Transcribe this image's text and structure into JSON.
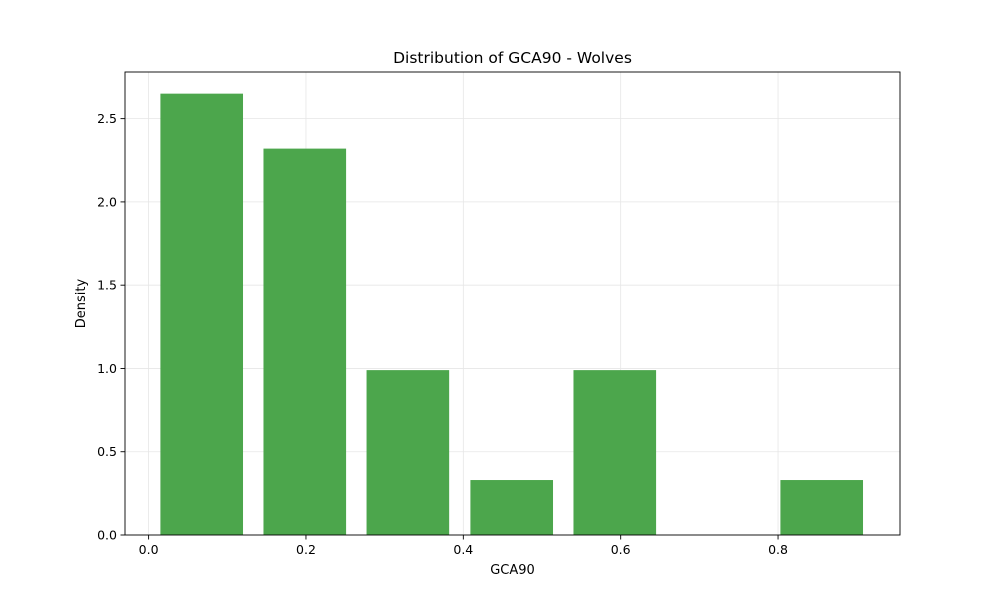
{
  "chart_data": {
    "type": "bar",
    "title": "Distribution of GCA90 - Wolves",
    "xlabel": "GCA90",
    "ylabel": "Density",
    "xlim": [
      -0.03,
      0.955
    ],
    "ylim": [
      0,
      2.78
    ],
    "xticks": [
      0.0,
      0.2,
      0.4,
      0.6,
      0.8
    ],
    "xtick_labels": [
      "0.0",
      "0.2",
      "0.4",
      "0.6",
      "0.8"
    ],
    "yticks": [
      0.0,
      0.5,
      1.0,
      1.5,
      2.0,
      2.5
    ],
    "ytick_labels": [
      "0.0",
      "0.5",
      "1.0",
      "1.5",
      "2.0",
      "2.5"
    ],
    "grid": true,
    "bar_color": "#4ca64c",
    "bins": [
      {
        "x0": 0.015,
        "x1": 0.12,
        "value": 2.65
      },
      {
        "x0": 0.146,
        "x1": 0.251,
        "value": 2.32
      },
      {
        "x0": 0.277,
        "x1": 0.382,
        "value": 0.99
      },
      {
        "x0": 0.409,
        "x1": 0.514,
        "value": 0.33
      },
      {
        "x0": 0.54,
        "x1": 0.645,
        "value": 0.99
      },
      {
        "x0": 0.671,
        "x1": 0.776,
        "value": 0.0
      },
      {
        "x0": 0.803,
        "x1": 0.908,
        "value": 0.33
      }
    ]
  }
}
